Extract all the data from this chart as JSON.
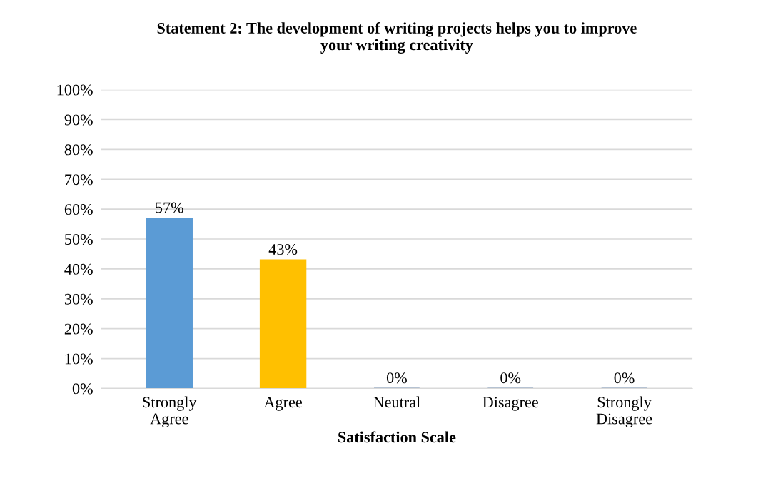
{
  "chart_data": {
    "type": "bar",
    "title": "Statement 2: The development of writing projects helps you to improve\nyour writing creativity",
    "xlabel": "Satisfaction Scale",
    "categories": [
      "Strongly\nAgree",
      "Agree",
      "Neutral",
      "Disagree",
      "Strongly\nDisagree"
    ],
    "values": [
      57,
      43,
      0,
      0,
      0
    ],
    "value_labels": [
      "57%",
      "43%",
      "0%",
      "0%",
      "0%"
    ],
    "colors": [
      "#5b9bd5",
      "#ffc000",
      "#7f97b8",
      "#7f97b8",
      "#7f97b8"
    ],
    "ylim": [
      0,
      100
    ],
    "yticks": [
      {
        "value": 0,
        "label": "0%"
      },
      {
        "value": 10,
        "label": "10%"
      },
      {
        "value": 20,
        "label": "20%"
      },
      {
        "value": 30,
        "label": "30%"
      },
      {
        "value": 40,
        "label": "40%"
      },
      {
        "value": 50,
        "label": "50%"
      },
      {
        "value": 60,
        "label": "60%"
      },
      {
        "value": 70,
        "label": "70%"
      },
      {
        "value": 80,
        "label": "80%"
      },
      {
        "value": 90,
        "label": "90%"
      },
      {
        "value": 100,
        "label": "100%"
      }
    ],
    "grid": "y",
    "legend": false
  }
}
